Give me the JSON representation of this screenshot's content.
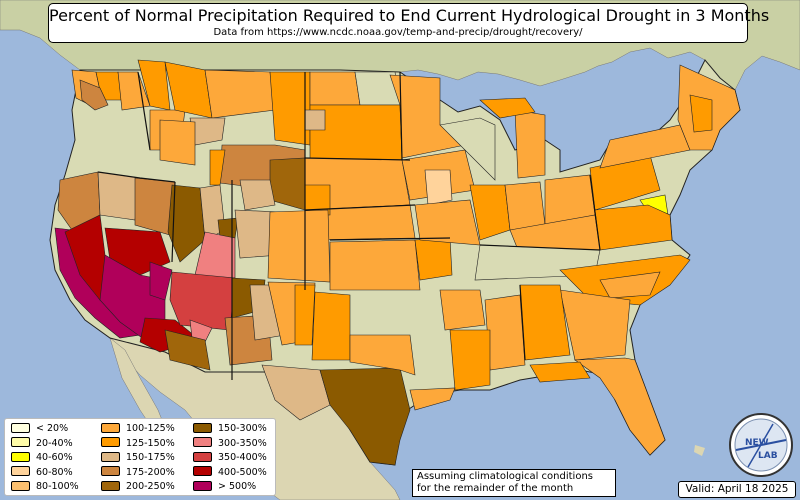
{
  "title": "Percent of Normal Precipitation Required to End Current Hydrological Drought in 3 Months",
  "subtitle": "Data from https://www.ncdc.noaa.gov/temp-and-precip/drought/recovery/",
  "legend": [
    {
      "label": "< 20%",
      "color": "#ffffe0"
    },
    {
      "label": "20-40%",
      "color": "#fffca8"
    },
    {
      "label": "40-60%",
      "color": "#ffff00"
    },
    {
      "label": "60-80%",
      "color": "#ffd39b"
    },
    {
      "label": "80-100%",
      "color": "#fcc070"
    },
    {
      "label": "100-125%",
      "color": "#fda83a"
    },
    {
      "label": "125-150%",
      "color": "#ff9b00"
    },
    {
      "label": "150-175%",
      "color": "#deb887"
    },
    {
      "label": "175-200%",
      "color": "#cd853f"
    },
    {
      "label": "200-250%",
      "color": "#a0660b"
    },
    {
      "label": "150-300%",
      "color": "#8b5a00"
    },
    {
      "label": "300-350%",
      "color": "#f08080"
    },
    {
      "label": "350-400%",
      "color": "#d44040"
    },
    {
      "label": "400-500%",
      "color": "#b40000"
    },
    {
      "label": "> 500%",
      "color": "#b0005a"
    }
  ],
  "note": {
    "line1": "Assuming climatological conditions",
    "line2": "for the remainder of the month"
  },
  "valid": "Valid: April 18 2025",
  "logo": {
    "text": "NEW",
    "text2": "LAB"
  },
  "colors": {
    "ocean": "#9db8dc",
    "land": "#d9dbb4",
    "canada": "#c9d0a4",
    "mexico": "#dcd6b2",
    "border": "#111111"
  }
}
